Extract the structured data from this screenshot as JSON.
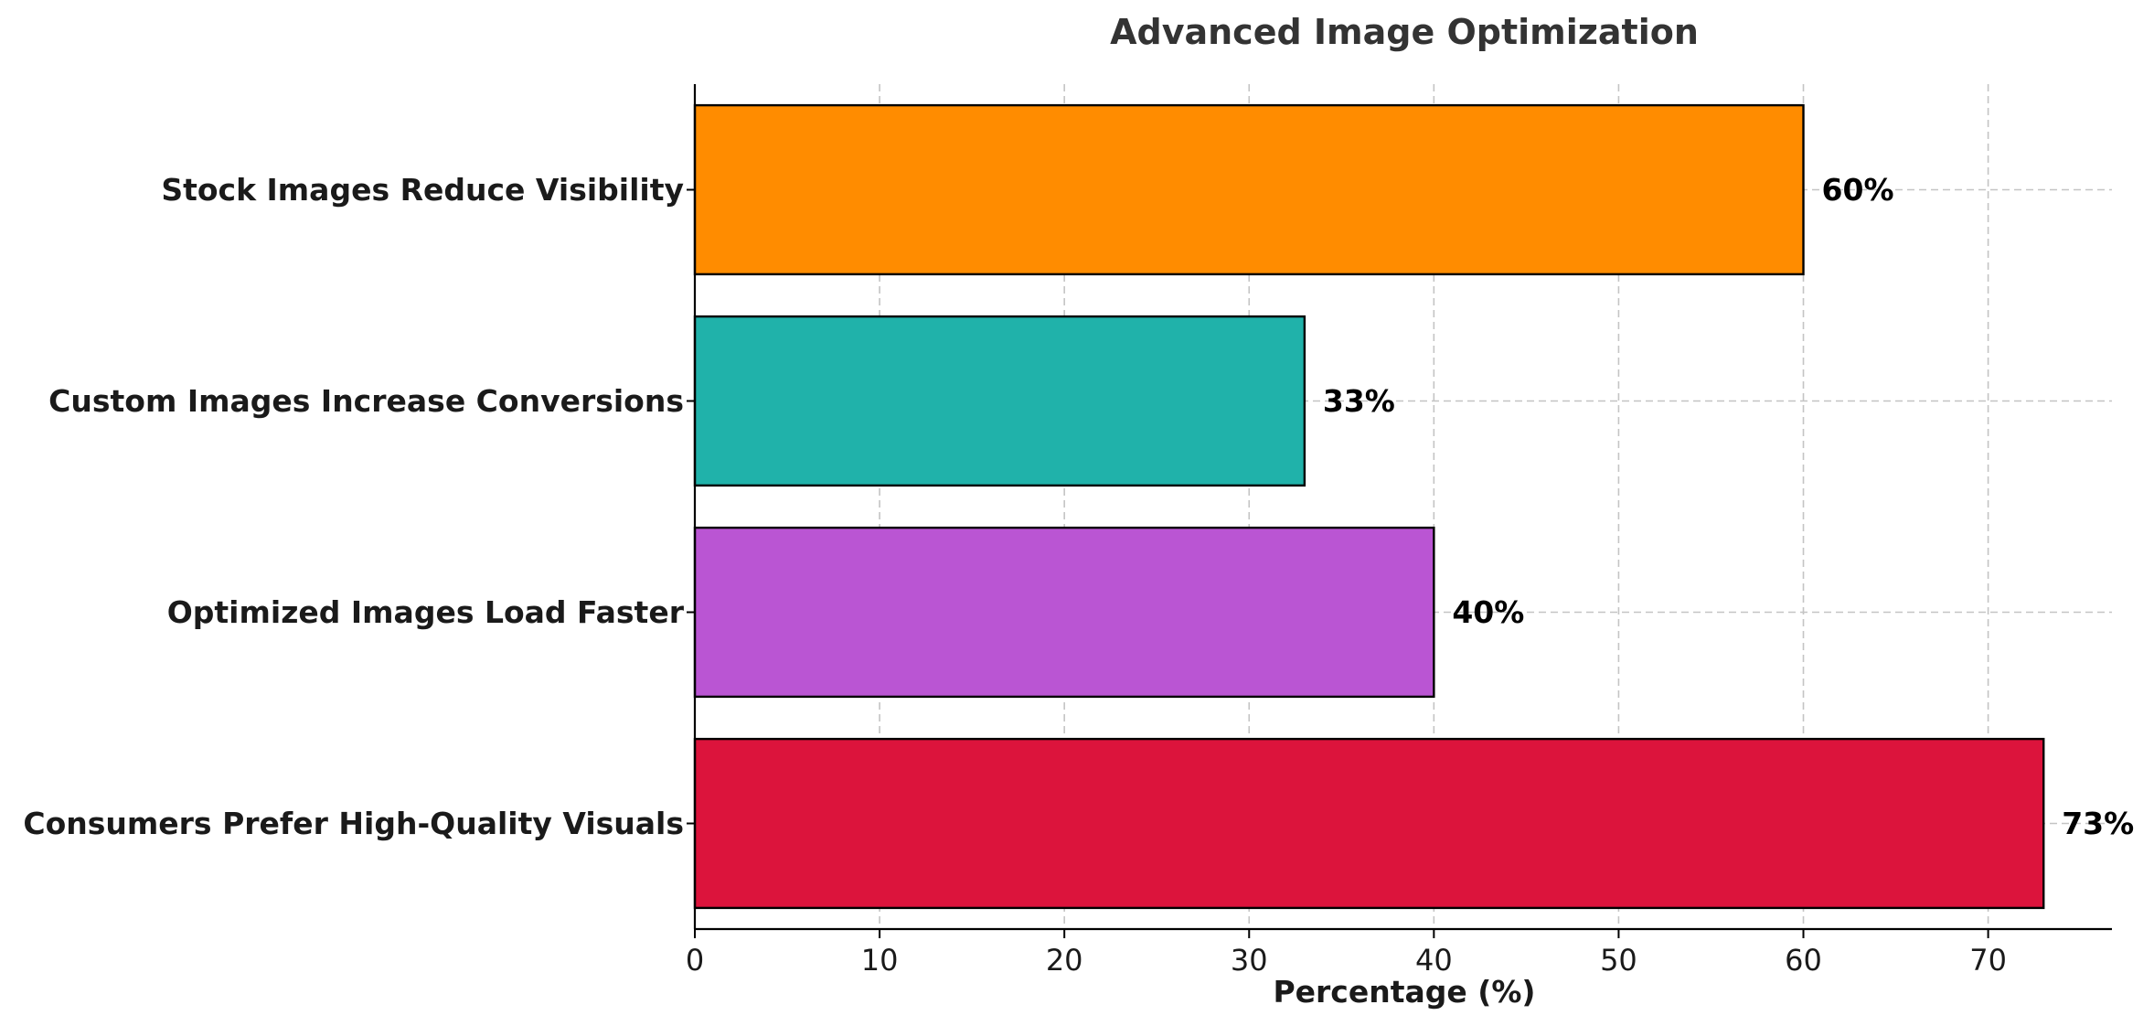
{
  "chart_data": {
    "type": "bar",
    "orientation": "horizontal",
    "title": "Advanced Image Optimization",
    "xlabel": "Percentage (%)",
    "ylabel": "",
    "categories": [
      "Consumers Prefer High-Quality Visuals",
      "Optimized Images Load Faster",
      "Custom Images Increase Conversions",
      "Stock Images Reduce Visibility"
    ],
    "values": [
      73,
      40,
      33,
      60
    ],
    "value_labels": [
      "73%",
      "40%",
      "33%",
      "60%"
    ],
    "colors": [
      "#DC143C",
      "#BA55D3",
      "#20B2AA",
      "#FF8C00"
    ],
    "xlim": [
      0,
      76.7
    ],
    "xticks": [
      0,
      10,
      20,
      30,
      40,
      50,
      60,
      70
    ],
    "xtick_labels": [
      "0",
      "10",
      "20",
      "30",
      "40",
      "50",
      "60",
      "70"
    ],
    "grid": true,
    "legend": "none"
  }
}
